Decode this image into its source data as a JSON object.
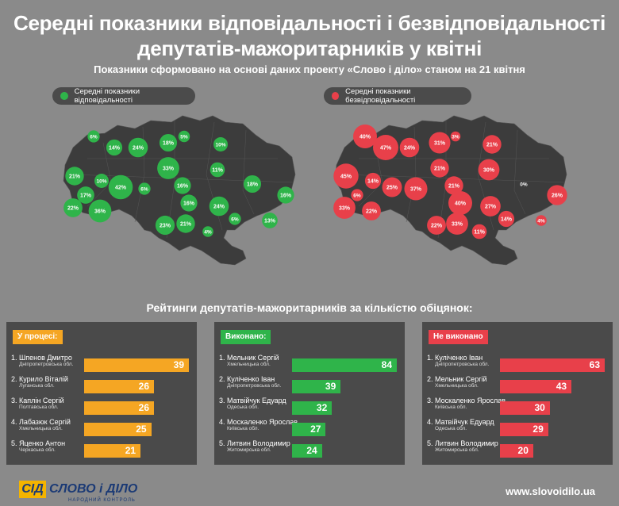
{
  "header": {
    "title_line1": "Середні показники відповідальності і безвідповідальності",
    "title_line2": "депутатів-мажоритарників у квітні",
    "subtitle": "Показники сформовано на основі даних проекту «Слово і діло» станом на 21 квітня"
  },
  "legend": {
    "responsible": "Середні показники відповідальності",
    "irresponsible": "Середні показники безвідповідальності"
  },
  "colors": {
    "green": "#2fb44a",
    "red": "#e8404a",
    "orange": "#f5a623",
    "map": "#3c3c3c"
  },
  "chart_data": [
    {
      "type": "map",
      "series": "responsible",
      "bubbles": [
        "6%",
        "14%",
        "24%",
        "18%",
        "5%",
        "10%",
        "21%",
        "10%",
        "42%",
        "33%",
        "11%",
        "18%",
        "17%",
        "6%",
        "16%",
        "16%",
        "22%",
        "36%",
        "24%",
        "16%",
        "23%",
        "21%",
        "6%",
        "13%",
        "4%"
      ]
    },
    {
      "type": "map",
      "series": "irresponsible",
      "bubbles": [
        "40%",
        "47%",
        "24%",
        "31%",
        "3%",
        "21%",
        "45%",
        "14%",
        "25%",
        "21%",
        "30%",
        "0%",
        "6%",
        "37%",
        "21%",
        "40%",
        "33%",
        "22%",
        "27%",
        "26%",
        "22%",
        "33%",
        "14%",
        "4%",
        "11%"
      ]
    },
    {
      "type": "bar",
      "title": "У процесі:",
      "categories": [
        "1. Шпенов Дмитро",
        "2. Курило Віталій",
        "3. Каплін Сергій",
        "4. Лабазюк Сергій",
        "5. Яценко Антон"
      ],
      "regions": [
        "Дніпропетровська обл.",
        "Луганська обл.",
        "Полтавська обл.",
        "Хмельницька обл.",
        "Черкаська обл."
      ],
      "values": [
        39,
        26,
        26,
        25,
        21
      ]
    },
    {
      "type": "bar",
      "title": "Виконано:",
      "categories": [
        "1. Мельник Сергій",
        "2. Кулiченко Iван",
        "3. Матвійчук Едуард",
        "4. Москаленко Ярослав",
        "5. Литвин Володимир"
      ],
      "regions": [
        "Хмельницька обл.",
        "Дніпропетровська обл.",
        "Одеська обл.",
        "Київська обл.",
        "Житомирська обл."
      ],
      "values": [
        84,
        39,
        32,
        27,
        24
      ]
    },
    {
      "type": "bar",
      "title": "Не виконано",
      "categories": [
        "1. Кулiченко Iван",
        "2. Мельник Сергій",
        "3. Москаленко Ярослав",
        "4. Матвійчук Едуард",
        "5. Литвин Володимир"
      ],
      "regions": [
        "Дніпропетровська обл.",
        "Хмельницька обл.",
        "Київська обл.",
        "Одеська обл.",
        "Житомирська обл."
      ],
      "values": [
        63,
        43,
        30,
        29,
        20
      ]
    }
  ],
  "ratings_title": "Рейтинги депутатів-мажоритарників за кількістю обіцянок:",
  "footer": {
    "logo_mark": "СІД",
    "logo_text": "СЛОВО і ДІЛО",
    "logo_sub": "НАРОДНИЙ КОНТРОЛЬ",
    "site": "www.slovoidilo.ua"
  }
}
